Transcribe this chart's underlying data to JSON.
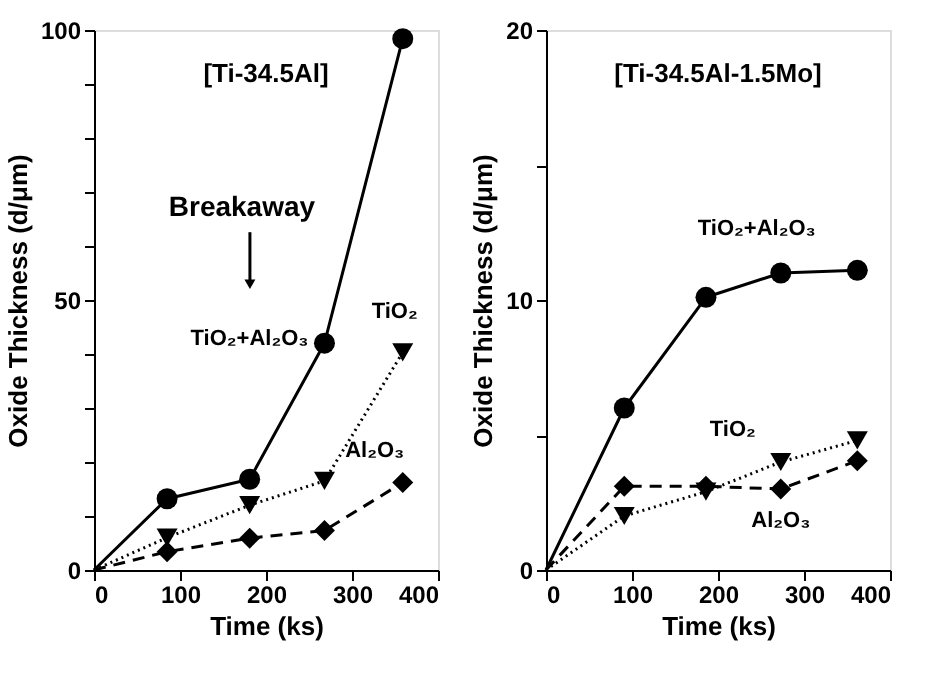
{
  "chart_data": [
    {
      "type": "line",
      "title": "[Ti-34.5Al]",
      "xlabel": "Time (ks)",
      "ylabel": "Oxide Thickness (d/μm)",
      "xlim": [
        0,
        400
      ],
      "xticks": [
        0,
        100,
        200,
        300,
        400
      ],
      "ylim": [
        0,
        100
      ],
      "yticks": [
        0,
        {
          "value": 10,
          "label": null
        },
        {
          "value": 20,
          "label": null
        },
        {
          "value": 30,
          "label": null
        },
        {
          "value": 40,
          "label": null
        },
        50,
        {
          "value": 60,
          "label": null
        },
        {
          "value": 70,
          "label": null
        },
        {
          "value": 80,
          "label": null
        },
        {
          "value": 90,
          "label": null
        },
        100
      ],
      "grid": false,
      "annotations": [
        "Breakaway"
      ],
      "series": [
        {
          "name": "TiO₂+Al₂O₃",
          "color": "#000000",
          "marker": "circle",
          "line_style": "solid",
          "x": [
            0,
            85,
            181,
            268,
            359
          ],
          "values": [
            0,
            13.2,
            16.8,
            42,
            98.4
          ]
        },
        {
          "name": "TiO₂",
          "color": "#000000",
          "marker": "triangle",
          "line_style": "dotted",
          "x": [
            0,
            85,
            181,
            268,
            359
          ],
          "values": [
            0,
            6,
            12,
            16.5,
            40.3
          ]
        },
        {
          "name": "Al₂O₃",
          "color": "#000000",
          "marker": "diamond",
          "line_style": "dashed",
          "x": [
            0,
            85,
            181,
            268,
            359
          ],
          "values": [
            0,
            3.4,
            5.9,
            7.3,
            16.2
          ]
        }
      ]
    },
    {
      "type": "line",
      "title": "[Ti-34.5Al-1.5Mo]",
      "xlabel": "Time (ks)",
      "ylabel": "Oxide Thickness (d/μm)",
      "xlim": [
        0,
        400
      ],
      "xticks": [
        0,
        100,
        200,
        300,
        400
      ],
      "ylim": [
        0,
        20
      ],
      "yticks": [
        0,
        {
          "value": 5,
          "label": null
        },
        10,
        {
          "value": 15,
          "label": null
        },
        20
      ],
      "grid": false,
      "series": [
        {
          "name": "TiO₂+Al₂O₃",
          "color": "#000000",
          "marker": "circle",
          "line_style": "solid",
          "x": [
            0,
            91,
            186,
            273,
            362
          ],
          "values": [
            0,
            6.0,
            10.1,
            11.0,
            11.1
          ]
        },
        {
          "name": "TiO₂",
          "color": "#000000",
          "marker": "triangle",
          "line_style": "dotted",
          "x": [
            0,
            91,
            186,
            273,
            362
          ],
          "values": [
            0,
            2.0,
            2.9,
            4.0,
            4.8
          ]
        },
        {
          "name": "Al₂O₃",
          "color": "#000000",
          "marker": "diamond",
          "line_style": "dashed",
          "x": [
            0,
            91,
            186,
            273,
            362
          ],
          "values": [
            0,
            3.1,
            3.1,
            3.0,
            4.05
          ]
        }
      ]
    }
  ]
}
